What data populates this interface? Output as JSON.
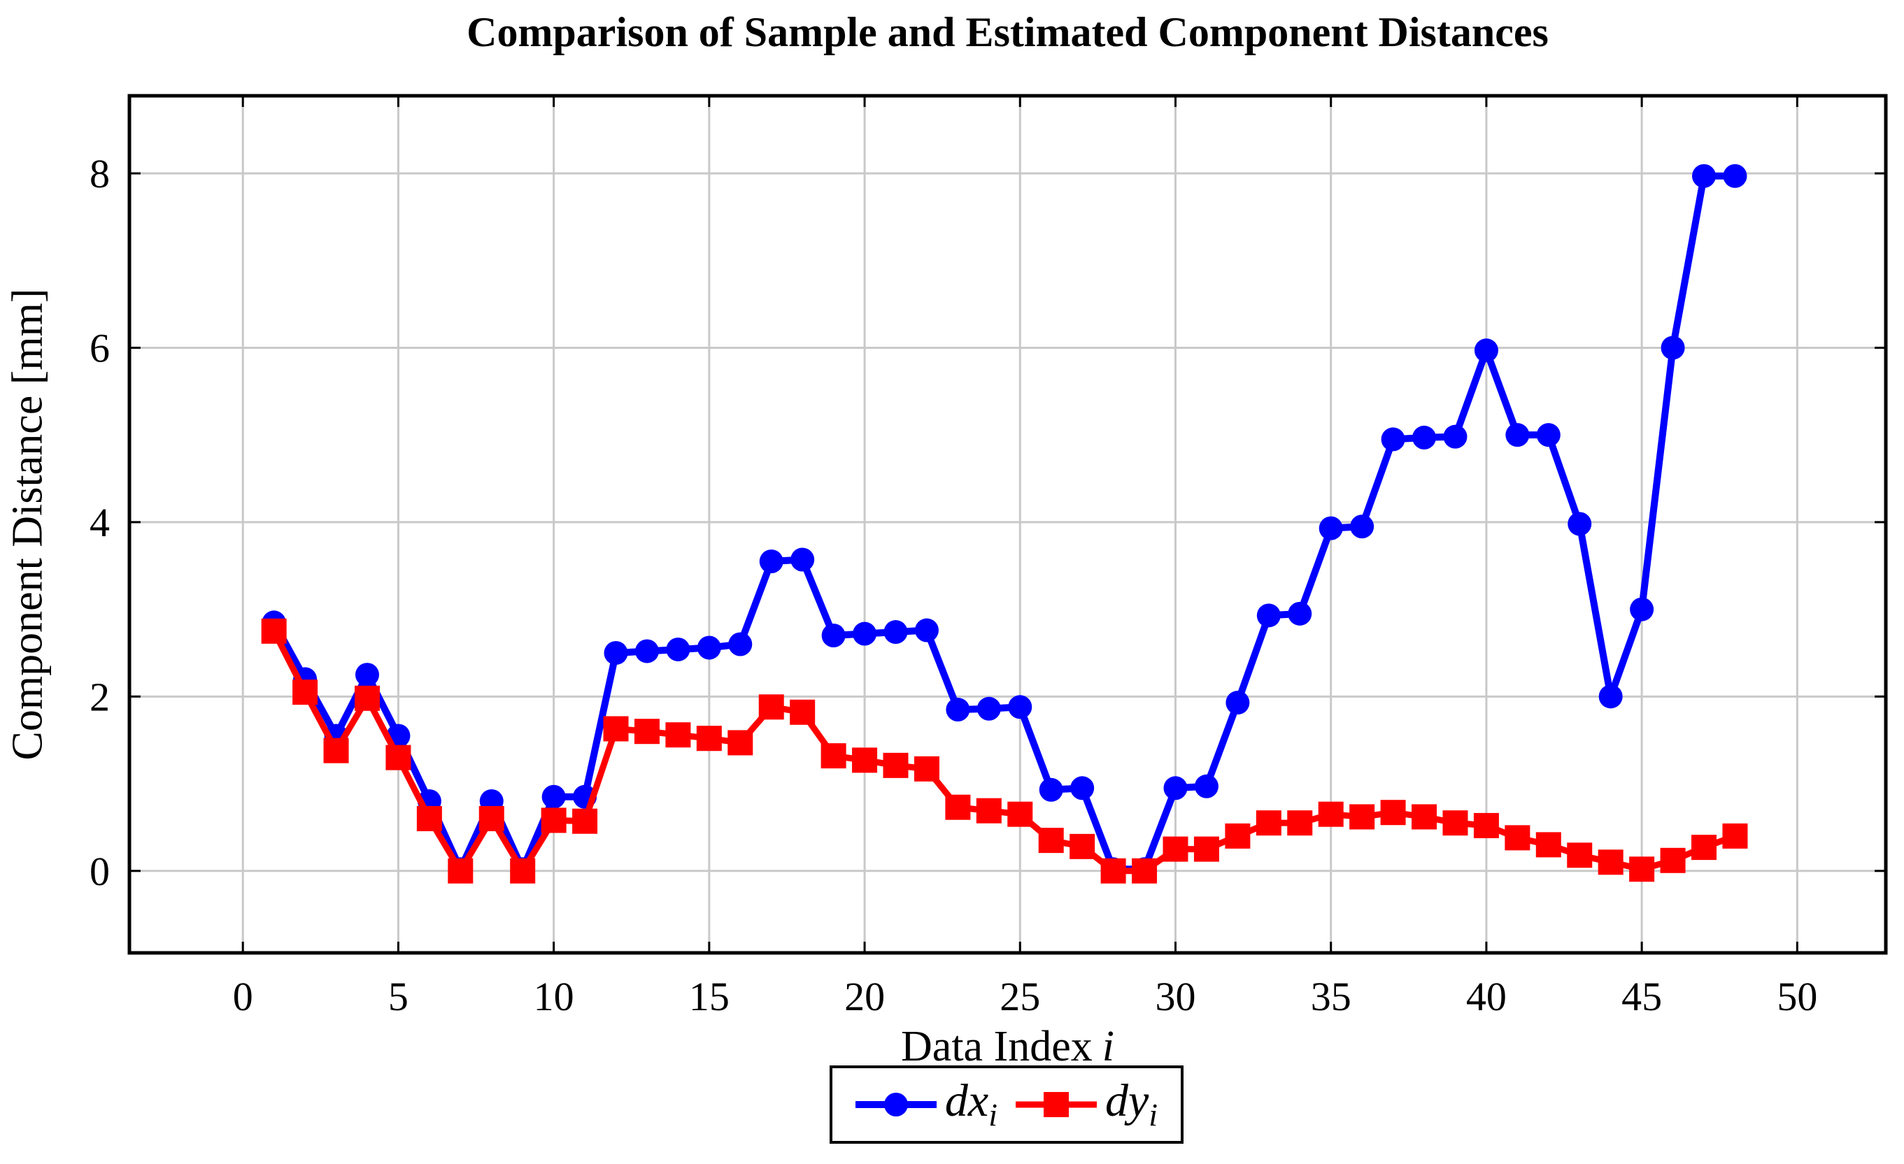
{
  "chart": {
    "title": "Comparison of Sample and Estimated Component Distances"
  },
  "axes": {
    "x": {
      "label_text": "Data Index",
      "label_var": "i"
    },
    "y": {
      "label": "Component Distance [mm]"
    }
  },
  "legend": {
    "items": [
      {
        "label": "dx",
        "sub": "i",
        "series": "dx",
        "marker": "circle",
        "color": "#0000ff"
      },
      {
        "label": "dy",
        "sub": "i",
        "series": "dy",
        "marker": "square",
        "color": "#ff0000"
      }
    ]
  },
  "style": {
    "grid_color": "#c9c9c9",
    "axis_color": "#000000",
    "background": "#ffffff",
    "blue": "#0000ff",
    "red": "#ff0000"
  },
  "chart_data": {
    "type": "line",
    "title": "Comparison of Sample and Estimated Component Distances",
    "xlabel": "Data Index i",
    "ylabel": "Component Distance [mm]",
    "grid": true,
    "legend_position": "below",
    "xlim": [
      -3.65,
      52.85
    ],
    "ylim": [
      -0.94,
      8.89
    ],
    "xticks": [
      0,
      5,
      10,
      15,
      20,
      25,
      30,
      35,
      40,
      45,
      50
    ],
    "yticks": [
      0,
      2,
      4,
      6,
      8
    ],
    "x": [
      1,
      2,
      3,
      4,
      5,
      6,
      7,
      8,
      9,
      10,
      11,
      12,
      13,
      14,
      15,
      16,
      17,
      18,
      19,
      20,
      21,
      22,
      23,
      24,
      25,
      26,
      27,
      28,
      29,
      30,
      31,
      32,
      33,
      34,
      35,
      36,
      37,
      38,
      39,
      40,
      41,
      42,
      43,
      44,
      45,
      46,
      47,
      48
    ],
    "series": [
      {
        "name": "dx_i",
        "color": "#0000ff",
        "marker": "circle",
        "values": [
          2.85,
          2.2,
          1.55,
          2.25,
          1.55,
          0.8,
          0.02,
          0.8,
          0.02,
          0.85,
          0.85,
          2.5,
          2.52,
          2.54,
          2.56,
          2.6,
          3.55,
          3.57,
          2.7,
          2.72,
          2.74,
          2.76,
          1.85,
          1.86,
          1.88,
          0.93,
          0.95,
          0.02,
          0.02,
          0.95,
          0.97,
          1.93,
          2.93,
          2.95,
          3.93,
          3.95,
          4.95,
          4.97,
          4.98,
          5.97,
          5.0,
          5.0,
          3.98,
          2.0,
          3.0,
          6.0,
          7.97,
          7.97
        ]
      },
      {
        "name": "dy_i",
        "color": "#ff0000",
        "marker": "square",
        "values": [
          2.75,
          2.05,
          1.38,
          1.98,
          1.3,
          0.6,
          0.0,
          0.6,
          0.0,
          0.58,
          0.57,
          1.63,
          1.6,
          1.56,
          1.52,
          1.47,
          1.88,
          1.82,
          1.32,
          1.27,
          1.21,
          1.17,
          0.73,
          0.69,
          0.65,
          0.35,
          0.28,
          0.0,
          0.0,
          0.25,
          0.25,
          0.4,
          0.55,
          0.55,
          0.65,
          0.62,
          0.67,
          0.62,
          0.55,
          0.52,
          0.38,
          0.3,
          0.18,
          0.1,
          0.02,
          0.12,
          0.27,
          0.4
        ]
      }
    ]
  }
}
